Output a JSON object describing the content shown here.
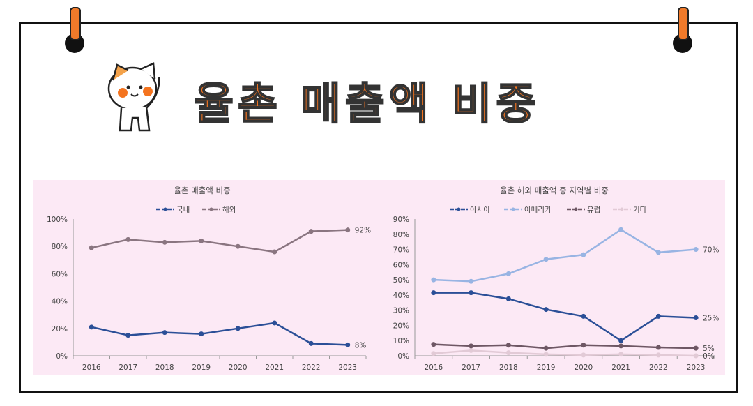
{
  "header": {
    "title": "율촌 매출액 비중",
    "mascot_icon": "cat-saluting-icon"
  },
  "colors": {
    "accent": "#f4741f",
    "panel_bg": "#fce9f5"
  },
  "chart_data": [
    {
      "type": "line",
      "title": "율촌 매출액 비중",
      "categories": [
        "2016",
        "2017",
        "2018",
        "2019",
        "2020",
        "2021",
        "2022",
        "2023"
      ],
      "ylim": [
        0,
        100
      ],
      "yticks": [
        "0%",
        "20%",
        "40%",
        "60%",
        "80%",
        "100%"
      ],
      "legend": "top",
      "series": [
        {
          "name": "국내",
          "color": "#2b4f97",
          "values": [
            21,
            15,
            17,
            16,
            20,
            24,
            9,
            8
          ],
          "end_label": "8%"
        },
        {
          "name": "해외",
          "color": "#8a7580",
          "values": [
            79,
            85,
            83,
            84,
            80,
            76,
            91,
            92
          ],
          "end_label": "92%"
        }
      ]
    },
    {
      "type": "line",
      "title": "율촌 해외 매출액 중 지역별 비중",
      "categories": [
        "2016",
        "2017",
        "2018",
        "2019",
        "2020",
        "2021",
        "2022",
        "2023"
      ],
      "ylim": [
        0,
        90
      ],
      "yticks": [
        "0%",
        "10%",
        "20%",
        "30%",
        "40%",
        "50%",
        "60%",
        "70%",
        "80%",
        "90%"
      ],
      "legend": "top",
      "series": [
        {
          "name": "아시아",
          "color": "#2b4f97",
          "values": [
            41.5,
            41.5,
            37.5,
            30.5,
            26,
            10,
            26,
            25
          ],
          "end_label": "25%"
        },
        {
          "name": "아메리카",
          "color": "#98b4e3",
          "values": [
            50,
            49,
            54,
            63.5,
            66.5,
            83,
            68,
            70
          ],
          "end_label": "70%"
        },
        {
          "name": "유럽",
          "color": "#6e5764",
          "values": [
            7.5,
            6.5,
            7,
            5,
            7,
            6.5,
            5.5,
            5
          ],
          "end_label": "5%"
        },
        {
          "name": "기타",
          "color": "#e2cad6",
          "values": [
            1.5,
            3.5,
            2,
            1,
            0.5,
            1,
            0.5,
            0
          ],
          "end_label": "0%"
        }
      ]
    }
  ]
}
